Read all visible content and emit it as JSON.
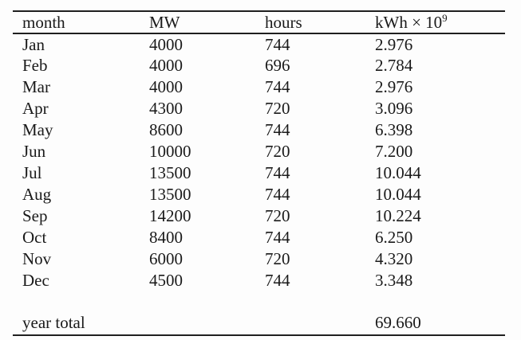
{
  "table": {
    "header": {
      "month": "month",
      "mw": "MW",
      "hours": "hours",
      "kwh_base": "kWh × 10",
      "kwh_sup": "9"
    },
    "rows": [
      {
        "month": "Jan",
        "mw": "4000",
        "hours": "744",
        "kwh": "2.976"
      },
      {
        "month": "Feb",
        "mw": "4000",
        "hours": "696",
        "kwh": "2.784"
      },
      {
        "month": "Mar",
        "mw": "4000",
        "hours": "744",
        "kwh": "2.976"
      },
      {
        "month": "Apr",
        "mw": "4300",
        "hours": "720",
        "kwh": "3.096"
      },
      {
        "month": "May",
        "mw": "8600",
        "hours": "744",
        "kwh": "6.398"
      },
      {
        "month": "Jun",
        "mw": "10000",
        "hours": "720",
        "kwh": "7.200"
      },
      {
        "month": "Jul",
        "mw": "13500",
        "hours": "744",
        "kwh": "10.044"
      },
      {
        "month": "Aug",
        "mw": "13500",
        "hours": "744",
        "kwh": "10.044"
      },
      {
        "month": "Sep",
        "mw": "14200",
        "hours": "720",
        "kwh": "10.224"
      },
      {
        "month": "Oct",
        "mw": "8400",
        "hours": "744",
        "kwh": "6.250"
      },
      {
        "month": "Nov",
        "mw": "6000",
        "hours": "720",
        "kwh": "4.320"
      },
      {
        "month": "Dec",
        "mw": "4500",
        "hours": "744",
        "kwh": "3.348"
      }
    ],
    "footer": {
      "label": "year total",
      "kwh": "69.660"
    },
    "colors": {
      "text": "#1a1a1a",
      "rule": "#1f1f1f",
      "background": "#fdfdfd"
    }
  }
}
